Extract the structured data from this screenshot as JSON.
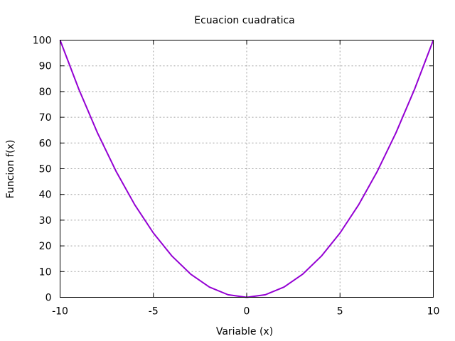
{
  "chart_data": {
    "type": "line",
    "title": "Ecuacion cuadratica",
    "xlabel": "Variable (x)",
    "ylabel": "Funcion f(x)",
    "xlim": [
      -10,
      10
    ],
    "ylim": [
      0,
      100
    ],
    "grid": true,
    "x_ticks": [
      -10,
      -5,
      0,
      5,
      10
    ],
    "y_ticks": [
      0,
      10,
      20,
      30,
      40,
      50,
      60,
      70,
      80,
      90,
      100
    ],
    "line_color": "#9400d3",
    "series": [
      {
        "x": [
          -10,
          -9,
          -8,
          -7,
          -6,
          -5,
          -4,
          -3,
          -2,
          -1,
          0,
          1,
          2,
          3,
          4,
          5,
          6,
          7,
          8,
          9,
          10
        ],
        "values": [
          100,
          81,
          64,
          49,
          36,
          25,
          16,
          9,
          4,
          1,
          0,
          1,
          4,
          9,
          16,
          25,
          36,
          49,
          64,
          81,
          100
        ]
      }
    ]
  }
}
